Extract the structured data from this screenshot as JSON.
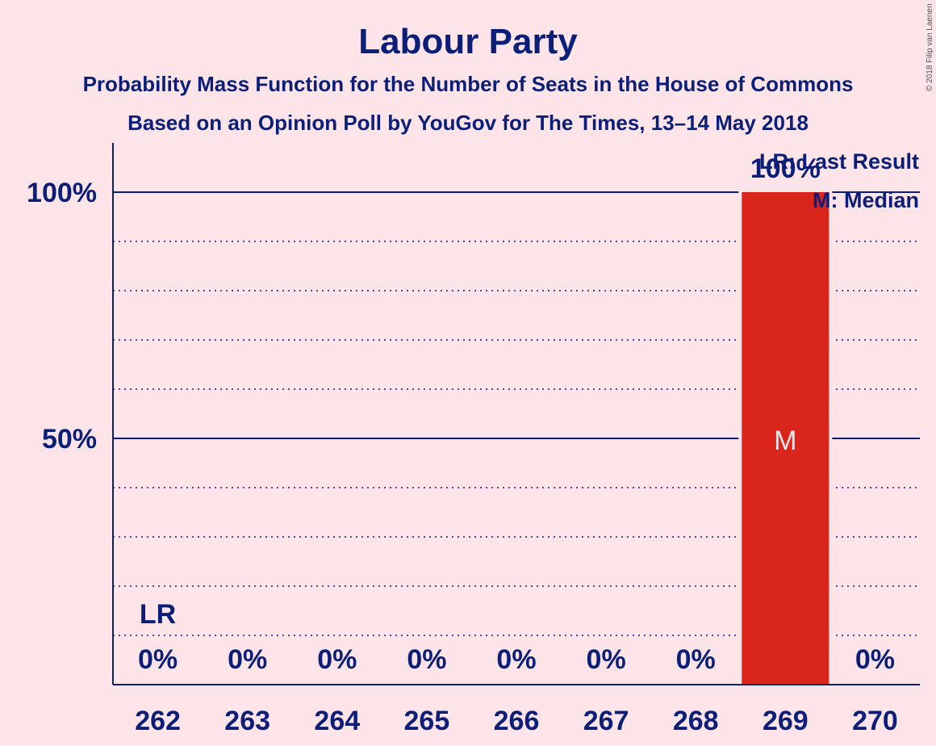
{
  "header": {
    "title": "Labour Party",
    "subtitle1": "Probability Mass Function for the Number of Seats in the House of Commons",
    "subtitle2": "Based on an Opinion Poll by YouGov for The Times, 13–14 May 2018"
  },
  "legend": {
    "last_result": "LR: Last Result",
    "median": "M: Median"
  },
  "copyright": "© 2018 Filip van Laenen",
  "colors": {
    "background": "#fde4e8",
    "text": "#0b1f7a",
    "bar": "#da251d"
  },
  "chart_data": {
    "type": "bar",
    "categories": [
      "262",
      "263",
      "264",
      "265",
      "266",
      "267",
      "268",
      "269",
      "270"
    ],
    "values": [
      0,
      0,
      0,
      0,
      0,
      0,
      0,
      100,
      0
    ],
    "value_labels": [
      "0%",
      "0%",
      "0%",
      "0%",
      "0%",
      "0%",
      "0%",
      "100%",
      "0%"
    ],
    "ylim": [
      0,
      110
    ],
    "yticks": [
      50,
      100
    ],
    "ytick_labels": [
      "50%",
      "100%"
    ],
    "minor_grid_step": 10,
    "last_result": {
      "category": "262",
      "label": "LR"
    },
    "median": {
      "category": "269",
      "label": "M"
    },
    "legend_placement": "top-right"
  }
}
